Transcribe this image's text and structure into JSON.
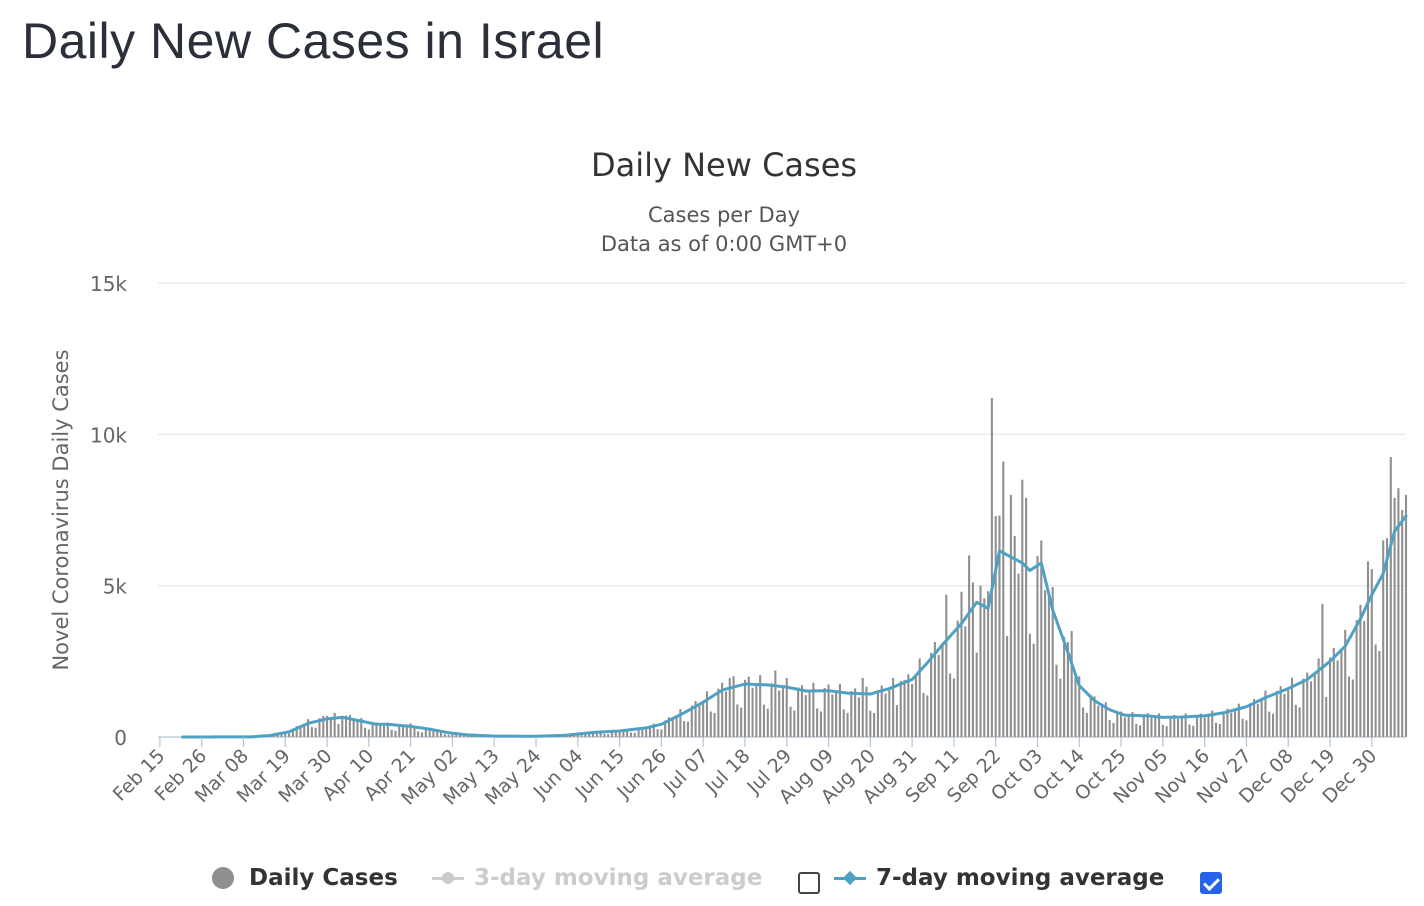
{
  "page_title": "Daily New Cases in Israel",
  "legend": {
    "daily_label": "Daily Cases",
    "ma3_label": "3-day moving average",
    "ma7_label": "7-day moving average",
    "ma3_checked": false,
    "ma7_checked": true
  },
  "colors": {
    "bars": "#8f8f8f",
    "ma7_line": "#4fa1c4",
    "ma3_disabled": "#cccccc",
    "checkbox_checked": "#2563eb"
  },
  "chart_data": {
    "type": "bar",
    "title": "Daily New Cases",
    "subtitle": "Cases per Day",
    "subtitle2": "Data as of 0:00 GMT+0",
    "ylabel": "Novel Coronavirus Daily Cases",
    "xlabel": "",
    "ylim": [
      0,
      15000
    ],
    "ytick_labels": [
      "0",
      "5k",
      "10k",
      "15k"
    ],
    "ytick_values": [
      0,
      5000,
      10000,
      15000
    ],
    "xtick_labels": [
      "Feb 15",
      "Feb 26",
      "Mar 08",
      "Mar 19",
      "Mar 30",
      "Apr 10",
      "Apr 21",
      "May 02",
      "May 13",
      "May 24",
      "Jun 04",
      "Jun 15",
      "Jun 26",
      "Jul 07",
      "Jul 18",
      "Jul 29",
      "Aug 09",
      "Aug 20",
      "Aug 31",
      "Sep 11",
      "Sep 22",
      "Oct 03",
      "Oct 14",
      "Oct 25",
      "Nov 05",
      "Nov 16",
      "Nov 27",
      "Dec 08",
      "Dec 19",
      "Dec 30"
    ],
    "x_start": "Feb 15",
    "x_end": "Jan 08",
    "grid": true,
    "legend_position": "bottom",
    "daily_cases_keypoints": [
      [
        "Feb 21",
        0
      ],
      [
        "Mar 10",
        5
      ],
      [
        "Mar 15",
        60
      ],
      [
        "Mar 20",
        200
      ],
      [
        "Mar 25",
        500
      ],
      [
        "Mar 30",
        650
      ],
      [
        "Apr 03",
        700
      ],
      [
        "Apr 05",
        650
      ],
      [
        "Apr 10",
        450
      ],
      [
        "Apr 15",
        400
      ],
      [
        "Apr 21",
        330
      ],
      [
        "Apr 26",
        250
      ],
      [
        "May 01",
        130
      ],
      [
        "May 06",
        60
      ],
      [
        "May 13",
        25
      ],
      [
        "May 24",
        20
      ],
      [
        "Jun 01",
        60
      ],
      [
        "Jun 08",
        150
      ],
      [
        "Jun 15",
        200
      ],
      [
        "Jun 22",
        300
      ],
      [
        "Jun 26",
        450
      ],
      [
        "Jul 02",
        850
      ],
      [
        "Jul 07",
        1200
      ],
      [
        "Jul 12",
        1600
      ],
      [
        "Jul 18",
        1800
      ],
      [
        "Jul 24",
        1700
      ],
      [
        "Jul 29",
        1650
      ],
      [
        "Aug 03",
        1500
      ],
      [
        "Aug 09",
        1550
      ],
      [
        "Aug 14",
        1450
      ],
      [
        "Aug 20",
        1400
      ],
      [
        "Aug 25",
        1600
      ],
      [
        "Aug 31",
        1900
      ],
      [
        "Sep 04",
        2500
      ],
      [
        "Sep 08",
        3100
      ],
      [
        "Sep 13",
        3800
      ],
      [
        "Sep 17",
        4500
      ],
      [
        "Sep 20",
        4300
      ],
      [
        "Sep 23",
        6200
      ],
      [
        "Sep 26",
        6000
      ],
      [
        "Sep 29",
        5800
      ],
      [
        "Oct 01",
        5500
      ],
      [
        "Oct 04",
        5800
      ],
      [
        "Oct 07",
        4200
      ],
      [
        "Oct 11",
        2800
      ],
      [
        "Oct 14",
        1700
      ],
      [
        "Oct 18",
        1200
      ],
      [
        "Oct 22",
        900
      ],
      [
        "Oct 26",
        700
      ],
      [
        "Nov 01",
        700
      ],
      [
        "Nov 05",
        650
      ],
      [
        "Nov 10",
        650
      ],
      [
        "Nov 16",
        700
      ],
      [
        "Nov 21",
        800
      ],
      [
        "Nov 27",
        1000
      ],
      [
        "Dec 02",
        1300
      ],
      [
        "Dec 08",
        1600
      ],
      [
        "Dec 13",
        1900
      ],
      [
        "Dec 19",
        2500
      ],
      [
        "Dec 23",
        3000
      ],
      [
        "Dec 27",
        3900
      ],
      [
        "Dec 30",
        4700
      ],
      [
        "Jan 02",
        5400
      ],
      [
        "Jan 05",
        6800
      ],
      [
        "Jan 08",
        7300
      ]
    ],
    "daily_cases_spikes": [
      [
        "Mar 30",
        700
      ],
      [
        "Apr 03",
        700
      ],
      [
        "Apr 21",
        450
      ],
      [
        "Jul 14",
        1950
      ],
      [
        "Jul 26",
        2200
      ],
      [
        "Aug 18",
        1950
      ],
      [
        "Aug 28",
        1850
      ],
      [
        "Sep 09",
        4700
      ],
      [
        "Sep 13",
        4800
      ],
      [
        "Sep 15",
        6000
      ],
      [
        "Sep 18",
        5000
      ],
      [
        "Sep 21",
        11200
      ],
      [
        "Sep 22",
        7300
      ],
      [
        "Sep 24",
        9100
      ],
      [
        "Sep 26",
        8000
      ],
      [
        "Sep 29",
        8500
      ],
      [
        "Sep 30",
        7900
      ],
      [
        "Oct 06",
        4700
      ],
      [
        "Oct 12",
        3500
      ],
      [
        "Dec 17",
        4400
      ],
      [
        "Dec 29",
        5800
      ],
      [
        "Jan 02",
        6500
      ],
      [
        "Jan 04",
        9250
      ],
      [
        "Jan 05",
        7900
      ],
      [
        "Jan 07",
        7500
      ],
      [
        "Jan 08",
        8000
      ]
    ],
    "ma7_keypoints": [
      [
        "Feb 21",
        0
      ],
      [
        "Mar 10",
        5
      ],
      [
        "Mar 15",
        50
      ],
      [
        "Mar 20",
        170
      ],
      [
        "Mar 25",
        450
      ],
      [
        "Mar 30",
        600
      ],
      [
        "Apr 03",
        650
      ],
      [
        "Apr 07",
        550
      ],
      [
        "Apr 12",
        420
      ],
      [
        "Apr 15",
        420
      ],
      [
        "Apr 21",
        350
      ],
      [
        "Apr 26",
        260
      ],
      [
        "May 01",
        140
      ],
      [
        "May 06",
        70
      ],
      [
        "May 13",
        30
      ],
      [
        "May 24",
        25
      ],
      [
        "Jun 01",
        60
      ],
      [
        "Jun 08",
        150
      ],
      [
        "Jun 15",
        200
      ],
      [
        "Jun 22",
        300
      ],
      [
        "Jun 26",
        420
      ],
      [
        "Jul 02",
        800
      ],
      [
        "Jul 07",
        1150
      ],
      [
        "Jul 12",
        1550
      ],
      [
        "Jul 18",
        1750
      ],
      [
        "Jul 24",
        1720
      ],
      [
        "Jul 29",
        1650
      ],
      [
        "Aug 03",
        1520
      ],
      [
        "Aug 09",
        1530
      ],
      [
        "Aug 14",
        1450
      ],
      [
        "Aug 20",
        1420
      ],
      [
        "Aug 25",
        1600
      ],
      [
        "Aug 31",
        1900
      ],
      [
        "Sep 04",
        2450
      ],
      [
        "Sep 08",
        3050
      ],
      [
        "Sep 13",
        3750
      ],
      [
        "Sep 17",
        4450
      ],
      [
        "Sep 20",
        4250
      ],
      [
        "Sep 23",
        6150
      ],
      [
        "Sep 26",
        5950
      ],
      [
        "Sep 29",
        5750
      ],
      [
        "Oct 01",
        5500
      ],
      [
        "Oct 04",
        5750
      ],
      [
        "Oct 07",
        4200
      ],
      [
        "Oct 11",
        2800
      ],
      [
        "Oct 14",
        1700
      ],
      [
        "Oct 18",
        1200
      ],
      [
        "Oct 22",
        900
      ],
      [
        "Oct 26",
        720
      ],
      [
        "Nov 01",
        700
      ],
      [
        "Nov 05",
        650
      ],
      [
        "Nov 10",
        660
      ],
      [
        "Nov 16",
        700
      ],
      [
        "Nov 21",
        800
      ],
      [
        "Nov 27",
        1000
      ],
      [
        "Dec 02",
        1300
      ],
      [
        "Dec 08",
        1600
      ],
      [
        "Dec 13",
        1900
      ],
      [
        "Dec 19",
        2500
      ],
      [
        "Dec 23",
        3000
      ],
      [
        "Dec 27",
        3900
      ],
      [
        "Dec 30",
        4700
      ],
      [
        "Jan 02",
        5400
      ],
      [
        "Jan 05",
        6800
      ],
      [
        "Jan 08",
        7300
      ]
    ]
  }
}
